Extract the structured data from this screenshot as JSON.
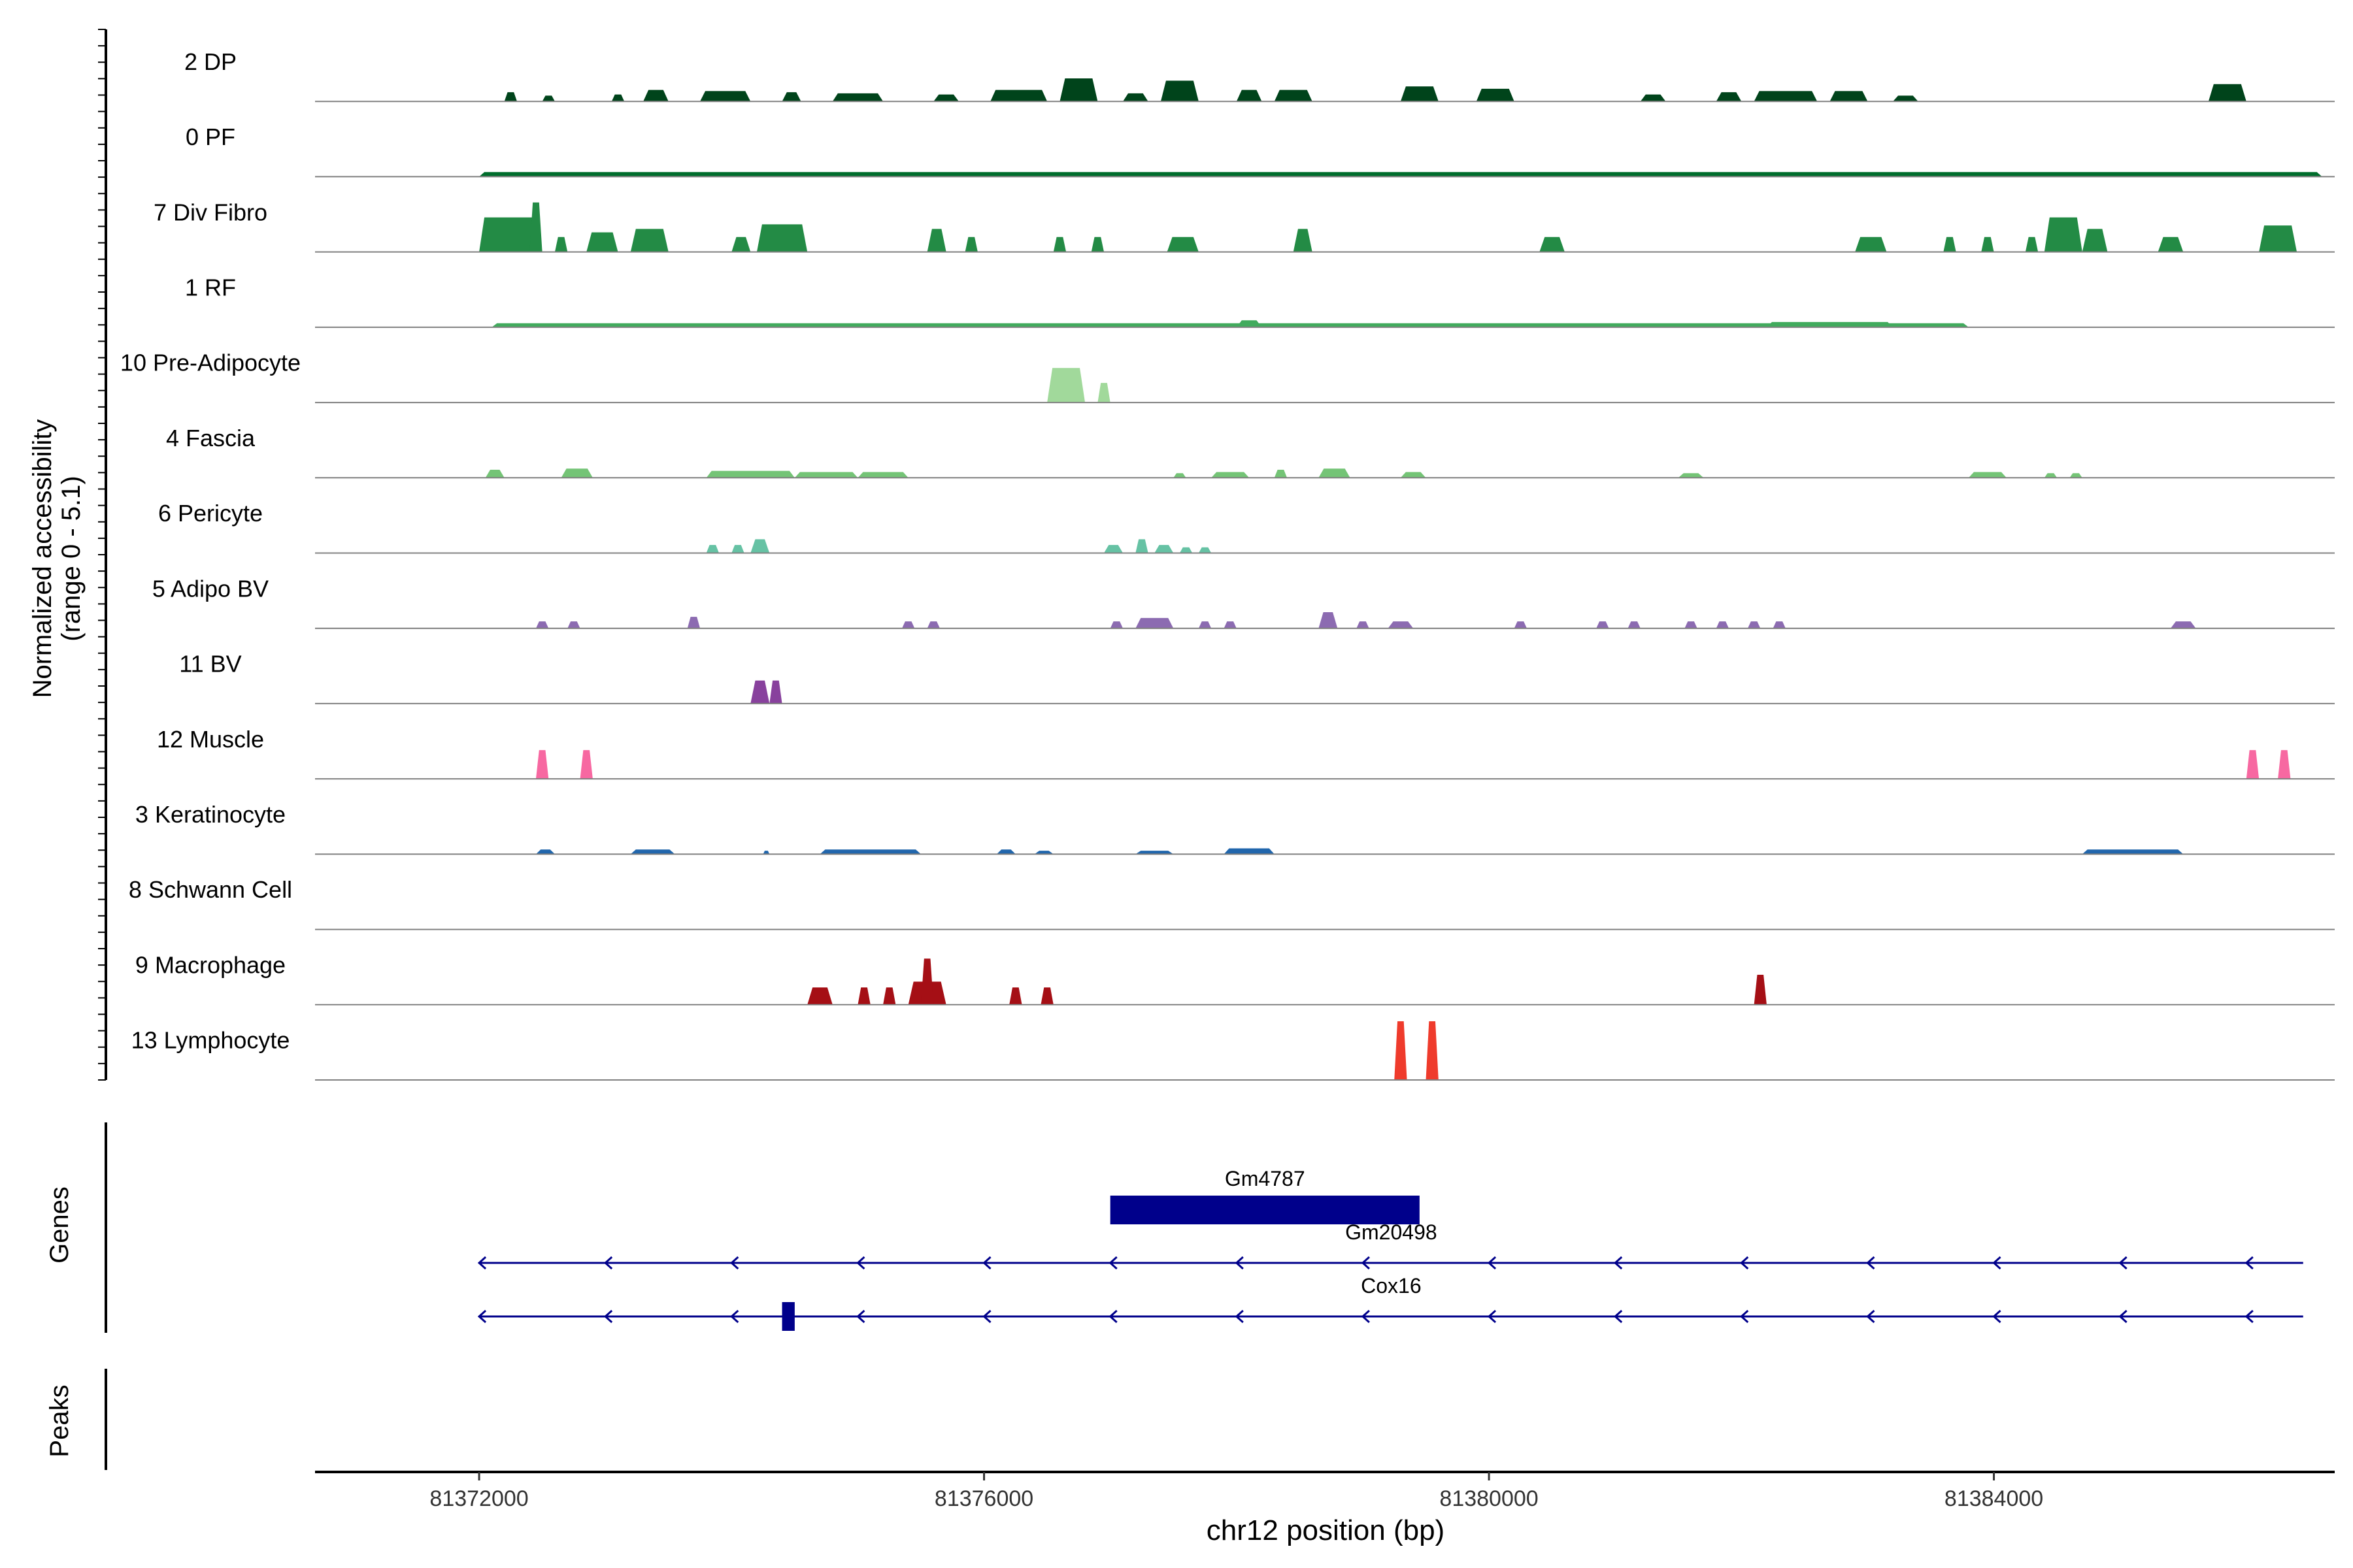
{
  "chart_data": {
    "type": "area",
    "y_axis_title_line1": "Normalized accessibility",
    "y_axis_title_line2": "(range 0 - 5.1)",
    "y_range": [
      0,
      5.1
    ],
    "x_axis_title": "chr12 position (bp)",
    "x_range": [
      81370700,
      81386700
    ],
    "x_ticks": [
      81372000,
      81376000,
      81380000,
      81384000
    ],
    "tracks": [
      {
        "name": "2 DP",
        "color": "#00441b",
        "peaks": [
          [
            81372200,
            81372300,
            0.8
          ],
          [
            81372500,
            81372600,
            0.5
          ],
          [
            81373050,
            81373150,
            0.6
          ],
          [
            81373300,
            81373500,
            1.0
          ],
          [
            81373750,
            81374150,
            0.9
          ],
          [
            81374400,
            81374550,
            0.8
          ],
          [
            81374800,
            81375200,
            0.7
          ],
          [
            81375600,
            81375800,
            0.6
          ],
          [
            81376050,
            81376500,
            1.0
          ],
          [
            81376600,
            81376900,
            2.0
          ],
          [
            81377100,
            81377300,
            0.7
          ],
          [
            81377400,
            81377700,
            1.8
          ],
          [
            81378000,
            81378200,
            1.0
          ],
          [
            81378300,
            81378600,
            1.0
          ],
          [
            81379300,
            81379600,
            1.3
          ],
          [
            81379900,
            81380200,
            1.1
          ],
          [
            81381200,
            81381400,
            0.6
          ],
          [
            81381800,
            81382000,
            0.8
          ],
          [
            81382100,
            81382600,
            0.9
          ],
          [
            81382700,
            81383000,
            0.9
          ],
          [
            81383200,
            81383400,
            0.5
          ],
          [
            81385700,
            81386000,
            1.5
          ]
        ]
      },
      {
        "name": "0 PF",
        "color": "#006d2c",
        "peaks": [
          [
            81372000,
            81386600,
            0.4
          ]
        ]
      },
      {
        "name": "7 Div Fibro",
        "color": "#238b45",
        "peaks": [
          [
            81372000,
            81372500,
            3.0
          ],
          [
            81372400,
            81372500,
            4.3
          ],
          [
            81372600,
            81372700,
            1.3
          ],
          [
            81372850,
            81373100,
            1.7
          ],
          [
            81373200,
            81373500,
            2.0
          ],
          [
            81374000,
            81374150,
            1.3
          ],
          [
            81374200,
            81374600,
            2.4
          ],
          [
            81375550,
            81375700,
            2.0
          ],
          [
            81375850,
            81375950,
            1.3
          ],
          [
            81376550,
            81376650,
            1.3
          ],
          [
            81376850,
            81376950,
            1.3
          ],
          [
            81377450,
            81377700,
            1.3
          ],
          [
            81378450,
            81378600,
            2.0
          ],
          [
            81380400,
            81380600,
            1.3
          ],
          [
            81382900,
            81383150,
            1.3
          ],
          [
            81383600,
            81383700,
            1.3
          ],
          [
            81383900,
            81384000,
            1.3
          ],
          [
            81384250,
            81384350,
            1.3
          ],
          [
            81384400,
            81384700,
            3.0
          ],
          [
            81384700,
            81384900,
            2.0
          ],
          [
            81385300,
            81385500,
            1.3
          ],
          [
            81386100,
            81386400,
            2.3
          ]
        ]
      },
      {
        "name": "1 RF",
        "color": "#41ab5d",
        "peaks": [
          [
            81372100,
            81383800,
            0.35
          ],
          [
            81382200,
            81383200,
            0.45
          ],
          [
            81378000,
            81378200,
            0.6
          ]
        ]
      },
      {
        "name": "10 Pre-Adipocyte",
        "color": "#a1d99b",
        "peaks": [
          [
            81376500,
            81376800,
            3.0
          ],
          [
            81376900,
            81377000,
            1.7
          ]
        ]
      },
      {
        "name": "4 Fascia",
        "color": "#74c476",
        "peaks": [
          [
            81372050,
            81372200,
            0.7
          ],
          [
            81372650,
            81372900,
            0.8
          ],
          [
            81373800,
            81374500,
            0.6
          ],
          [
            81374500,
            81375000,
            0.5
          ],
          [
            81375000,
            81375400,
            0.5
          ],
          [
            81377500,
            81377600,
            0.4
          ],
          [
            81377800,
            81378100,
            0.5
          ],
          [
            81378300,
            81378400,
            0.7
          ],
          [
            81378650,
            81378900,
            0.8
          ],
          [
            81379300,
            81379500,
            0.5
          ],
          [
            81381500,
            81381700,
            0.4
          ],
          [
            81383800,
            81384100,
            0.5
          ],
          [
            81384400,
            81384500,
            0.4
          ],
          [
            81384600,
            81384700,
            0.4
          ]
        ]
      },
      {
        "name": "6 Pericyte",
        "color": "#66c2a4",
        "peaks": [
          [
            81373800,
            81373900,
            0.7
          ],
          [
            81374000,
            81374100,
            0.7
          ],
          [
            81374150,
            81374300,
            1.2
          ],
          [
            81376950,
            81377100,
            0.7
          ],
          [
            81377200,
            81377300,
            1.2
          ],
          [
            81377350,
            81377500,
            0.7
          ],
          [
            81377550,
            81377650,
            0.5
          ],
          [
            81377700,
            81377800,
            0.5
          ]
        ]
      },
      {
        "name": "5 Adipo BV",
        "color": "#8c6bb1",
        "peaks": [
          [
            81372450,
            81372550,
            0.6
          ],
          [
            81372700,
            81372800,
            0.6
          ],
          [
            81373650,
            81373750,
            1.0
          ],
          [
            81375350,
            81375450,
            0.6
          ],
          [
            81375550,
            81375650,
            0.6
          ],
          [
            81377000,
            81377100,
            0.6
          ],
          [
            81377200,
            81377500,
            0.9
          ],
          [
            81377700,
            81377800,
            0.6
          ],
          [
            81377900,
            81378000,
            0.6
          ],
          [
            81378650,
            81378800,
            1.4
          ],
          [
            81378950,
            81379050,
            0.6
          ],
          [
            81379200,
            81379400,
            0.6
          ],
          [
            81380200,
            81380300,
            0.6
          ],
          [
            81380850,
            81380950,
            0.6
          ],
          [
            81381100,
            81381200,
            0.6
          ],
          [
            81381550,
            81381650,
            0.6
          ],
          [
            81381800,
            81381900,
            0.6
          ],
          [
            81382050,
            81382150,
            0.6
          ],
          [
            81382250,
            81382350,
            0.6
          ],
          [
            81385400,
            81385600,
            0.6
          ]
        ]
      },
      {
        "name": "11 BV",
        "color": "#88419d",
        "peaks": [
          [
            81374150,
            81374300,
            2.0
          ],
          [
            81374300,
            81374400,
            2.0
          ]
        ]
      },
      {
        "name": "12 Muscle",
        "color": "#f768a1",
        "peaks": [
          [
            81372450,
            81372550,
            2.5
          ],
          [
            81372800,
            81372900,
            2.5
          ],
          [
            81386000,
            81386100,
            2.5
          ],
          [
            81386250,
            81386350,
            2.5
          ]
        ]
      },
      {
        "name": "3 Keratinocyte",
        "color": "#2166ac",
        "peaks": [
          [
            81372450,
            81372600,
            0.4
          ],
          [
            81373200,
            81373550,
            0.4
          ],
          [
            81374250,
            81374300,
            0.3
          ],
          [
            81374700,
            81375500,
            0.4
          ],
          [
            81376100,
            81376250,
            0.4
          ],
          [
            81376400,
            81376550,
            0.3
          ],
          [
            81377200,
            81377500,
            0.3
          ],
          [
            81377900,
            81378300,
            0.5
          ],
          [
            81384700,
            81385500,
            0.4
          ]
        ]
      },
      {
        "name": "8 Schwann Cell",
        "color": "#4292c6",
        "peaks": []
      },
      {
        "name": "9 Macrophage",
        "color": "#a50f15",
        "peaks": [
          [
            81374600,
            81374800,
            1.5
          ],
          [
            81375000,
            81375100,
            1.5
          ],
          [
            81375200,
            81375300,
            1.5
          ],
          [
            81375400,
            81375700,
            2.0
          ],
          [
            81375500,
            81375600,
            4.0
          ],
          [
            81376200,
            81376300,
            1.5
          ],
          [
            81376450,
            81376550,
            1.5
          ],
          [
            81382100,
            81382200,
            2.6
          ]
        ]
      },
      {
        "name": "13 Lymphocyte",
        "color": "#ef3b2c",
        "peaks": [
          [
            81379250,
            81379350,
            5.1
          ],
          [
            81379500,
            81379600,
            5.1
          ]
        ]
      }
    ],
    "genes_track_label": "Genes",
    "peaks_track_label": "Peaks",
    "genes": [
      {
        "name": "Gm4787",
        "start": 81377000,
        "end": 81379450,
        "row": 0,
        "type": "box"
      },
      {
        "name": "Gm20498",
        "start": 81372000,
        "end": 81386450,
        "row": 1,
        "type": "line",
        "strand": "-"
      },
      {
        "name": "Cox16",
        "start": 81372000,
        "end": 81386450,
        "row": 2,
        "type": "line",
        "strand": "-",
        "exon_start": 81374400,
        "exon_end": 81374500
      }
    ],
    "colors": {
      "gene": "#00008b",
      "baseline": "#808080",
      "axis": "#000000"
    }
  }
}
